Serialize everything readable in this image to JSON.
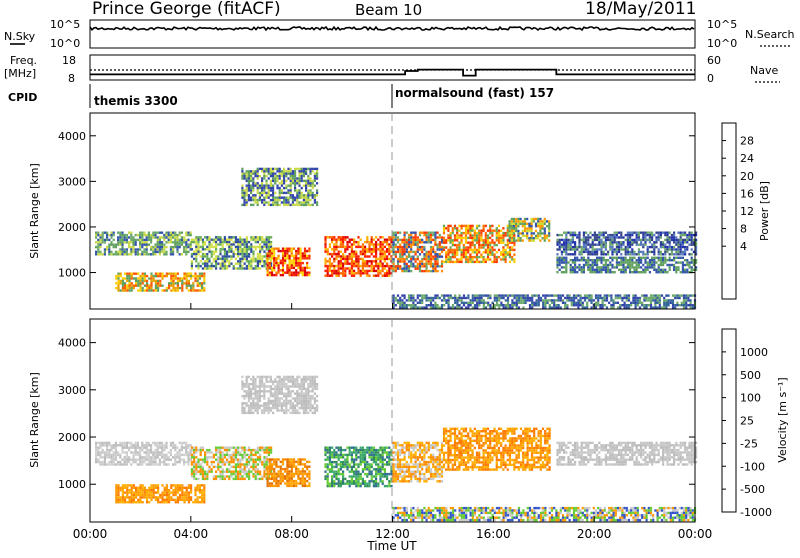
{
  "header": {
    "station": "Prince George (fitACF)",
    "beam": "Beam 10",
    "date": "18/May/2011"
  },
  "left_labels": {
    "nsky": "N.Sky",
    "freq_line1": "Freq.",
    "freq_line2": "[MHz]",
    "cpid": "CPID"
  },
  "right_labels": {
    "nsearch": "N.Search",
    "nave": "Nave"
  },
  "cpid_programs": [
    {
      "label": "themis 3300",
      "start_hour": 0,
      "end_hour": 12
    },
    {
      "label": "normalsound (fast) 157",
      "start_hour": 12,
      "end_hour": 24
    }
  ],
  "chart_data": [
    {
      "type": "line",
      "name": "noise",
      "yticks_left": [
        "10^5",
        "10^0"
      ],
      "yticks_right": [
        "10^5",
        "10^0"
      ]
    },
    {
      "type": "line",
      "name": "freq-nave",
      "yticks_left": [
        "18",
        "8"
      ],
      "yticks_right": [
        "60",
        "0"
      ],
      "nave_steps": [
        {
          "start": 0,
          "end": 12.5,
          "value": 0.18
        },
        {
          "start": 12.5,
          "end": 13,
          "value": 0.35
        },
        {
          "start": 13,
          "end": 14.8,
          "value": 0.42
        },
        {
          "start": 14.8,
          "end": 15.3,
          "value": 0.12
        },
        {
          "start": 15.3,
          "end": 18.5,
          "value": 0.42
        },
        {
          "start": 18.5,
          "end": 24,
          "value": 0.18
        }
      ]
    },
    {
      "type": "heatmap",
      "name": "power",
      "ylabel": "Slant Range [km]",
      "yticks": [
        "4000",
        "3000",
        "2000",
        "1000"
      ],
      "ylim": [
        200,
        4500
      ],
      "colorbar_label": "Power [dB]",
      "colorbar_ticks": [
        "28",
        "24",
        "20",
        "16",
        "12",
        "8",
        "4"
      ],
      "colorbar_colors": [
        "#ff0000",
        "#ff5500",
        "#ff9900",
        "#ffcc00",
        "#ccee00",
        "#66cc33",
        "#339966",
        "#336699",
        "#3333aa",
        "#0000ff"
      ],
      "regions": [
        {
          "t0": 0.2,
          "t1": 4.0,
          "r0": 1400,
          "r1": 1900,
          "colors": [
            "#3355aa",
            "#5fa05f",
            "#c7d94a",
            "#6aa96a"
          ]
        },
        {
          "t0": 1.0,
          "t1": 4.5,
          "r0": 620,
          "r1": 1000,
          "colors": [
            "#e6a000",
            "#ff5a00",
            "#ffcc00",
            "#5fa05f"
          ]
        },
        {
          "t0": 4.0,
          "t1": 7.2,
          "r0": 1100,
          "r1": 1800,
          "colors": [
            "#2e4ea0",
            "#68ad5a",
            "#d2e04d"
          ]
        },
        {
          "t0": 7.0,
          "t1": 8.7,
          "r0": 950,
          "r1": 1550,
          "colors": [
            "#ff2a00",
            "#ff7a00",
            "#ffd200",
            "#e00000"
          ]
        },
        {
          "t0": 9.3,
          "t1": 12.0,
          "r0": 950,
          "r1": 1800,
          "colors": [
            "#ff1a00",
            "#ff6a00",
            "#ffb000",
            "#dd0000"
          ]
        },
        {
          "t0": 12.0,
          "t1": 14.0,
          "r0": 1050,
          "r1": 1900,
          "colors": [
            "#3355aa",
            "#6aa96a",
            "#ff8a00",
            "#ff3a00"
          ]
        },
        {
          "t0": 14.0,
          "t1": 16.8,
          "r0": 1250,
          "r1": 2050,
          "colors": [
            "#ff7300",
            "#ff3a00",
            "#ffcc00",
            "#66aa55"
          ]
        },
        {
          "t0": 16.6,
          "t1": 18.2,
          "r0": 1700,
          "r1": 2200,
          "colors": [
            "#ff9900",
            "#ccdd33",
            "#5fa05f",
            "#3355aa"
          ]
        },
        {
          "t0": 18.5,
          "t1": 24.0,
          "r0": 1400,
          "r1": 1900,
          "colors": [
            "#2233aa",
            "#334488",
            "#5577bb",
            "#6aa96a"
          ]
        },
        {
          "t0": 18.5,
          "t1": 24.0,
          "r0": 1000,
          "r1": 1350,
          "colors": [
            "#3355aa",
            "#5fa05f"
          ]
        },
        {
          "t0": 6.0,
          "t1": 9.0,
          "r0": 2500,
          "r1": 3300,
          "colors": [
            "#3344aa",
            "#5fa05f",
            "#c7d94a"
          ]
        },
        {
          "t0": 12.0,
          "t1": 24.0,
          "r0": 220,
          "r1": 520,
          "colors": [
            "#3344aa",
            "#336699",
            "#6aa96a"
          ]
        }
      ]
    },
    {
      "type": "heatmap",
      "name": "velocity",
      "ylabel": "Slant Range [km]",
      "yticks": [
        "4000",
        "3000",
        "2000",
        "1000"
      ],
      "ylim": [
        200,
        4500
      ],
      "colorbar_label": "Velocity [m s⁻¹]",
      "colorbar_ticks": [
        "1000",
        "500",
        "100",
        "25",
        "-25",
        "-100",
        "-500",
        "-1000"
      ],
      "colorbar_colors": [
        "#3355cc",
        "#3366aa",
        "#2e8b57",
        "#66cc33",
        "#c8c8c8",
        "#ffb000",
        "#ff7a00",
        "#ff2a00"
      ],
      "regions": [
        {
          "t0": 0.2,
          "t1": 4.0,
          "r0": 1400,
          "r1": 1900,
          "colors": [
            "#c8c8c8",
            "#bdbdbd",
            "#d2d2d2"
          ]
        },
        {
          "t0": 1.0,
          "t1": 4.5,
          "r0": 620,
          "r1": 1000,
          "colors": [
            "#ff9900",
            "#ffb000",
            "#ff7a00"
          ]
        },
        {
          "t0": 4.0,
          "t1": 7.2,
          "r0": 1100,
          "r1": 1800,
          "colors": [
            "#ff9000",
            "#66cc33",
            "#c8c8c8"
          ]
        },
        {
          "t0": 7.0,
          "t1": 8.7,
          "r0": 950,
          "r1": 1550,
          "colors": [
            "#ff8c00",
            "#ffa500",
            "#e07000"
          ]
        },
        {
          "t0": 9.3,
          "t1": 12.0,
          "r0": 950,
          "r1": 1800,
          "colors": [
            "#2e8b57",
            "#3aa86a",
            "#2f6f8f",
            "#66cc33"
          ]
        },
        {
          "t0": 12.0,
          "t1": 14.0,
          "r0": 1050,
          "r1": 1900,
          "colors": [
            "#ff8c00",
            "#ffb000",
            "#c8c8c8"
          ]
        },
        {
          "t0": 14.0,
          "t1": 18.2,
          "r0": 1300,
          "r1": 2200,
          "colors": [
            "#ff7a00",
            "#ff9900",
            "#ffb000"
          ]
        },
        {
          "t0": 18.5,
          "t1": 24.0,
          "r0": 1400,
          "r1": 1900,
          "colors": [
            "#c8c8c8",
            "#bdbdbd"
          ]
        },
        {
          "t0": 6.0,
          "t1": 9.0,
          "r0": 2500,
          "r1": 3300,
          "colors": [
            "#c8c8c8",
            "#bdbdbd"
          ]
        },
        {
          "t0": 12.0,
          "t1": 24.0,
          "r0": 220,
          "r1": 520,
          "colors": [
            "#c8c8c8",
            "#ff9900",
            "#3355cc",
            "#66cc33"
          ]
        }
      ]
    }
  ],
  "xaxis": {
    "label": "Time UT",
    "ticks": [
      "00:00",
      "04:00",
      "08:00",
      "12:00",
      "16:00",
      "20:00",
      "00:00"
    ]
  }
}
